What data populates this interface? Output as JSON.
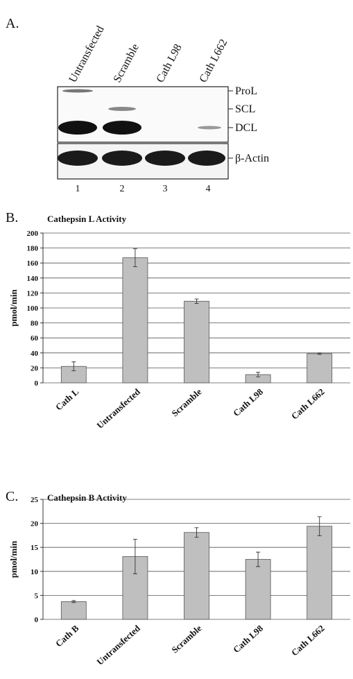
{
  "blot": {
    "panel_label": "A.",
    "lanes": [
      "Untransfected",
      "Scramble",
      "Cath L98",
      "Cath L662"
    ],
    "lane_numbers": [
      "1",
      "2",
      "3",
      "4"
    ],
    "bands": [
      "ProL",
      "SCL",
      "DCL",
      "β-Actin"
    ]
  },
  "chart_data": [
    {
      "type": "bar",
      "panel_label": "B.",
      "title": "Cathepsin L Activity",
      "y_label": "pmol/min",
      "categories": [
        "Cath L",
        "Untransfected",
        "Scramble",
        "Cath L98",
        "Cath L662"
      ],
      "values": [
        22,
        167,
        109,
        11,
        39
      ],
      "errors": [
        6,
        12,
        3,
        3,
        1
      ],
      "color": "#bfbfbf",
      "ylim": [
        0,
        200
      ],
      "yticks": [
        0,
        20,
        40,
        60,
        80,
        100,
        120,
        140,
        160,
        180,
        200
      ],
      "grid": true
    },
    {
      "type": "bar",
      "panel_label": "C.",
      "title": "Cathepsin B Activity",
      "y_label": "pmol/min",
      "categories": [
        "Cath B",
        "Untransfected",
        "Scramble",
        "Cath L98",
        "Cath L662"
      ],
      "values": [
        3.7,
        13.1,
        18.1,
        12.5,
        19.4
      ],
      "errors": [
        0.2,
        3.6,
        1,
        1.5,
        2
      ],
      "color": "#bfbfbf",
      "ylim": [
        0,
        25
      ],
      "yticks": [
        0,
        5,
        10,
        15,
        20,
        25
      ],
      "grid": true
    }
  ]
}
